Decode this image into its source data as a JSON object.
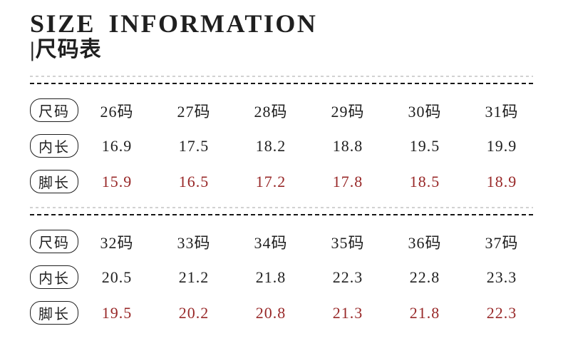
{
  "page": {
    "title_en": "SIZE INFORMATION",
    "title_zh": "|尺码表"
  },
  "colors": {
    "text": "#1f1f1f",
    "accent_red": "#982828",
    "divider_dark": "#161616",
    "divider_light": "#d2d2d2"
  },
  "tables": [
    {
      "rows": [
        {
          "key": "size",
          "label": "尺码",
          "highlight": false,
          "values": [
            "26码",
            "27码",
            "28码",
            "29码",
            "30码",
            "31码"
          ]
        },
        {
          "key": "inner-length",
          "label": "内长",
          "highlight": false,
          "values": [
            "16.9",
            "17.5",
            "18.2",
            "18.8",
            "19.5",
            "19.9"
          ]
        },
        {
          "key": "foot-length",
          "label": "脚长",
          "highlight": true,
          "values": [
            "15.9",
            "16.5",
            "17.2",
            "17.8",
            "18.5",
            "18.9"
          ]
        }
      ]
    },
    {
      "rows": [
        {
          "key": "size",
          "label": "尺码",
          "highlight": false,
          "values": [
            "32码",
            "33码",
            "34码",
            "35码",
            "36码",
            "37码"
          ]
        },
        {
          "key": "inner-length",
          "label": "内长",
          "highlight": false,
          "values": [
            "20.5",
            "21.2",
            "21.8",
            "22.3",
            "22.8",
            "23.3"
          ]
        },
        {
          "key": "foot-length",
          "label": "脚长",
          "highlight": true,
          "values": [
            "19.5",
            "20.2",
            "20.8",
            "21.3",
            "21.8",
            "22.3"
          ]
        }
      ]
    }
  ]
}
